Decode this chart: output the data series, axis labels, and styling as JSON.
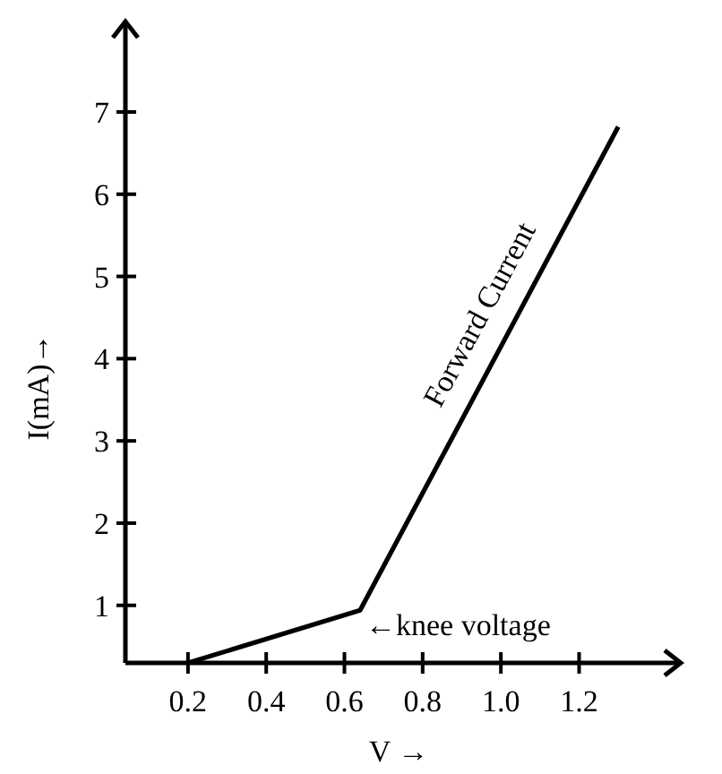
{
  "chart_data": {
    "type": "line",
    "xlabel": "V →",
    "ylabel": "I(mA)→",
    "xlim": [
      0.04,
      1.46
    ],
    "ylim": [
      0.3,
      8.1
    ],
    "xticks": [
      {
        "value": 0.2,
        "label": "0.2"
      },
      {
        "value": 0.4,
        "label": "0.4"
      },
      {
        "value": 0.6,
        "label": "0.6"
      },
      {
        "value": 0.8,
        "label": "0.8"
      },
      {
        "value": 1.0,
        "label": "1.0"
      },
      {
        "value": 1.2,
        "label": "1.2"
      }
    ],
    "yticks": [
      1,
      2,
      3,
      4,
      5,
      6,
      7
    ],
    "series": [
      {
        "name": "Forward Current",
        "color": "#000000",
        "x": [
          0.2,
          0.64,
          1.3
        ],
        "values": [
          0.3,
          0.94,
          6.82
        ]
      }
    ],
    "annotations": [
      {
        "text": "←knee voltage",
        "x": 0.64,
        "y": 0.94
      }
    ],
    "grid": false,
    "legend": false,
    "marker": "none",
    "line_style": "solid"
  }
}
